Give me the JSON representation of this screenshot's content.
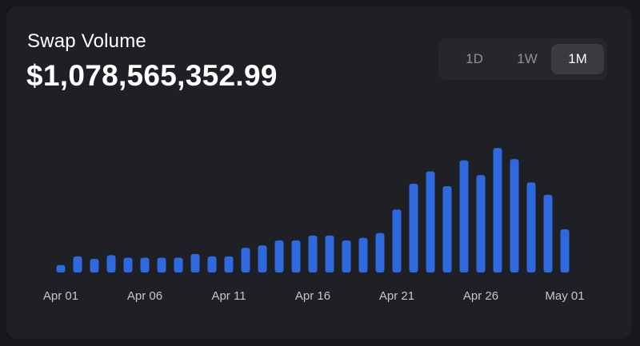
{
  "card": {
    "title": "Swap Volume",
    "value": "$1,078,565,352.99"
  },
  "range_toggle": {
    "options": [
      "1D",
      "1W",
      "1M"
    ],
    "selected": "1M"
  },
  "colors": {
    "bar": "#2f69df",
    "axis_label": "#c4c6cc",
    "card_bg": "#1f2025"
  },
  "chart_data": {
    "type": "bar",
    "categories": [
      "Apr 01",
      "Apr 02",
      "Apr 03",
      "Apr 04",
      "Apr 05",
      "Apr 06",
      "Apr 07",
      "Apr 08",
      "Apr 09",
      "Apr 10",
      "Apr 11",
      "Apr 12",
      "Apr 13",
      "Apr 14",
      "Apr 15",
      "Apr 16",
      "Apr 17",
      "Apr 18",
      "Apr 19",
      "Apr 20",
      "Apr 21",
      "Apr 22",
      "Apr 23",
      "Apr 24",
      "Apr 25",
      "Apr 26",
      "Apr 27",
      "Apr 28",
      "Apr 29",
      "Apr 30",
      "May 01"
    ],
    "values": [
      6,
      13,
      11,
      14,
      12,
      12,
      12,
      12,
      15,
      13,
      13,
      20,
      22,
      26,
      26,
      30,
      30,
      26,
      28,
      32,
      51,
      72,
      82,
      70,
      91,
      79,
      101,
      92,
      73,
      63,
      35
    ],
    "tick_labels": [
      "Apr 01",
      "Apr 06",
      "Apr 11",
      "Apr 16",
      "Apr 21",
      "Apr 26",
      "May 01"
    ],
    "ylim": [
      0,
      105
    ],
    "grid": false,
    "legend": "none",
    "title": "",
    "xlabel": "",
    "ylabel": ""
  }
}
